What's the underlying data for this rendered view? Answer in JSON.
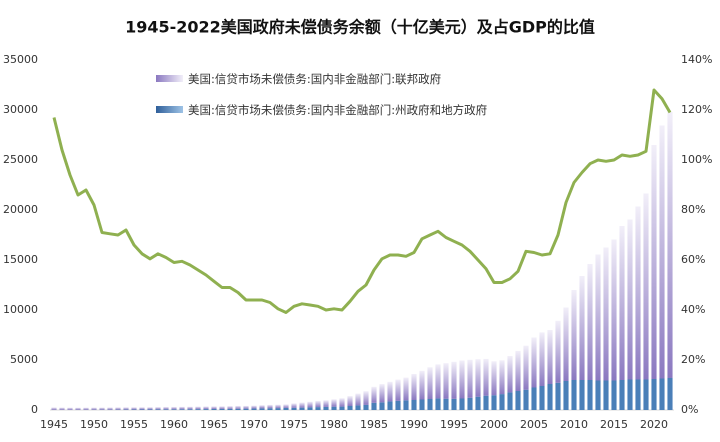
{
  "chart_data": {
    "type": "bar-line",
    "title": "1945-2022美国政府未偿债务余额（十亿美元）及占GDP的比值",
    "categories": [
      "1945",
      null,
      null,
      null,
      null,
      "1950",
      null,
      null,
      null,
      null,
      "1955",
      null,
      null,
      null,
      null,
      "1960",
      null,
      null,
      null,
      null,
      "1965",
      null,
      null,
      null,
      null,
      "1970",
      null,
      null,
      null,
      null,
      "1975",
      null,
      null,
      null,
      null,
      "1980",
      null,
      null,
      null,
      null,
      "1985",
      null,
      null,
      null,
      null,
      "1990",
      null,
      null,
      null,
      null,
      "1995",
      null,
      null,
      null,
      null,
      "2000",
      null,
      null,
      null,
      null,
      "2005",
      null,
      null,
      null,
      null,
      "2010",
      null,
      null,
      null,
      null,
      "2015",
      null,
      null,
      null,
      null,
      "2020",
      null,
      null
    ],
    "series": [
      {
        "name": "美国:信贷市场未偿债务:国内非金融部门:联邦政府",
        "color": "#9484c4",
        "type": "bar",
        "values": [
          240,
          230,
          220,
          215,
          218,
          218,
          216,
          220,
          226,
          230,
          230,
          225,
          225,
          233,
          240,
          237,
          245,
          251,
          255,
          260,
          262,
          264,
          276,
          286,
          280,
          295,
          320,
          340,
          345,
          355,
          440,
          510,
          570,
          620,
          660,
          740,
          830,
          990,
          1180,
          1370,
          1600,
          1820,
          1960,
          2120,
          2270,
          2600,
          2870,
          3170,
          3400,
          3550,
          3700,
          3800,
          3800,
          3750,
          3680,
          3390,
          3380,
          3640,
          4010,
          4400,
          5000,
          5360,
          5400,
          6200,
          7350,
          9000,
          10400,
          11600,
          12600,
          13300,
          14100,
          15400,
          16000,
          17300,
          18600,
          23400,
          25300,
          26600
        ]
      },
      {
        "name": "美国:信贷市场未偿债务:国内非金融部门:州政府和地方政府",
        "color": "#4a7fb8",
        "type": "bar",
        "values": [
          15,
          14,
          16,
          19,
          21,
          24,
          27,
          30,
          34,
          39,
          45,
          49,
          54,
          59,
          64,
          70,
          75,
          81,
          87,
          92,
          100,
          105,
          113,
          123,
          133,
          144,
          162,
          176,
          190,
          207,
          220,
          236,
          262,
          289,
          310,
          330,
          340,
          400,
          460,
          510,
          720,
          770,
          860,
          920,
          970,
          1000,
          1050,
          1100,
          1160,
          1130,
          1120,
          1150,
          1220,
          1330,
          1430,
          1480,
          1590,
          1760,
          1900,
          2030,
          2250,
          2400,
          2600,
          2720,
          2900,
          3000,
          3000,
          3000,
          2950,
          2950,
          2950,
          3000,
          3050,
          3050,
          3050,
          3100,
          3150,
          3200
        ]
      },
      {
        "color": "#8fb050",
        "type": "line",
        "axis": "y2",
        "values": [
          117,
          104,
          94,
          86,
          88,
          82,
          71,
          70.5,
          70,
          72,
          66,
          62.5,
          60.5,
          62.5,
          61,
          59,
          59.5,
          58,
          56,
          54,
          51.5,
          49,
          49,
          47,
          44,
          44,
          44,
          43,
          40.5,
          39,
          41.5,
          42.5,
          42,
          41.5,
          40,
          40.5,
          40,
          43.5,
          47.5,
          50,
          56,
          60.5,
          62,
          62,
          61.5,
          63,
          68.5,
          70,
          71.5,
          69,
          67.5,
          66,
          63.5,
          60,
          56.5,
          51,
          51,
          52.5,
          55.5,
          63.5,
          63,
          62,
          62.5,
          70,
          83,
          91,
          95,
          98.5,
          100,
          99.5,
          100,
          102,
          101.5,
          102,
          103.5,
          128,
          124.5,
          119
        ]
      }
    ],
    "ylim": [
      0,
      35000
    ],
    "yticks": [
      0,
      5000,
      10000,
      15000,
      20000,
      25000,
      30000,
      35000
    ],
    "y2lim": [
      0,
      140
    ],
    "y2ticks": [
      {
        "value": 0,
        "label": "0%"
      },
      {
        "value": 20,
        "label": "20%"
      },
      {
        "value": 40,
        "label": "40%"
      },
      {
        "value": 60,
        "label": "60%"
      },
      {
        "value": 80,
        "label": "80%"
      },
      {
        "value": 100,
        "label": "100%"
      },
      {
        "value": 120,
        "label": "120%"
      },
      {
        "value": 140,
        "label": "140%"
      }
    ],
    "grid": false
  }
}
